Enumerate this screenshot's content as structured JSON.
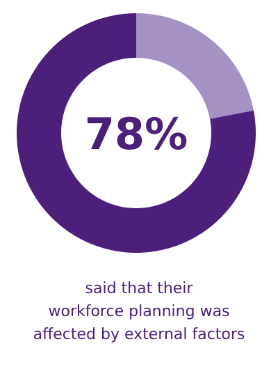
{
  "chart_data": {
    "type": "pie",
    "donut": true,
    "values": [
      22,
      78
    ],
    "value_labels": [
      null,
      "78%"
    ],
    "colors": [
      "#a591c3",
      "#4b1f7a"
    ],
    "caption": [
      "said that their",
      "workforce planning was",
      "affected by external factors"
    ]
  }
}
